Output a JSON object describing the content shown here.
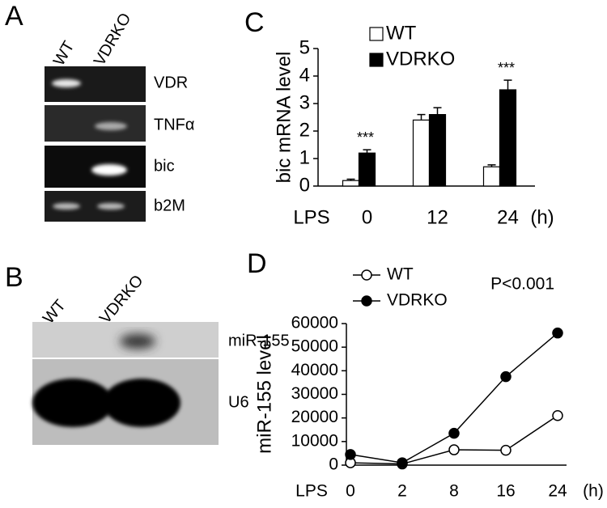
{
  "gels": [
    {
      "panel_label": "A",
      "lanes": [
        "WT",
        "VDRKO"
      ],
      "bands": [
        "VDR",
        "TNFα",
        "bic",
        "b2M"
      ]
    },
    {
      "panel_label": "B",
      "lanes": [
        "WT",
        "VDRKO"
      ],
      "bands": [
        "miR-155",
        "U6"
      ]
    }
  ],
  "chart_data": [
    {
      "type": "bar",
      "panel_label": "C",
      "ylabel": "bic mRNA level",
      "xlabel": "LPS",
      "xunit": "(h)",
      "categories": [
        "0",
        "12",
        "24"
      ],
      "series": [
        {
          "name": "WT",
          "color": "#ffffff",
          "values": [
            0.2,
            2.4,
            0.7
          ],
          "errors": [
            0.05,
            0.2,
            0.07
          ]
        },
        {
          "name": "VDRKO",
          "color": "#000000",
          "values": [
            1.2,
            2.6,
            3.5
          ],
          "errors": [
            0.12,
            0.25,
            0.35
          ]
        }
      ],
      "ylim": [
        0,
        5
      ],
      "yticks": [
        0,
        1,
        2,
        3,
        4,
        5
      ],
      "annotations": [
        {
          "text": "***",
          "category": "0"
        },
        {
          "text": "***",
          "category": "24"
        }
      ]
    },
    {
      "type": "line",
      "panel_label": "D",
      "ylabel": "miR-155 level",
      "xlabel": "LPS",
      "xunit": "(h)",
      "categories": [
        "0",
        "2",
        "8",
        "16",
        "24"
      ],
      "series": [
        {
          "name": "WT",
          "color": "#ffffff",
          "values": [
            1000,
            500,
            6500,
            6300,
            21000
          ]
        },
        {
          "name": "VDRKO",
          "color": "#000000",
          "values": [
            4500,
            1000,
            13500,
            37500,
            56000
          ]
        }
      ],
      "ylim": [
        0,
        60000
      ],
      "yticks": [
        0,
        10000,
        20000,
        30000,
        40000,
        50000,
        60000
      ],
      "annotation": "P<0.001"
    }
  ]
}
